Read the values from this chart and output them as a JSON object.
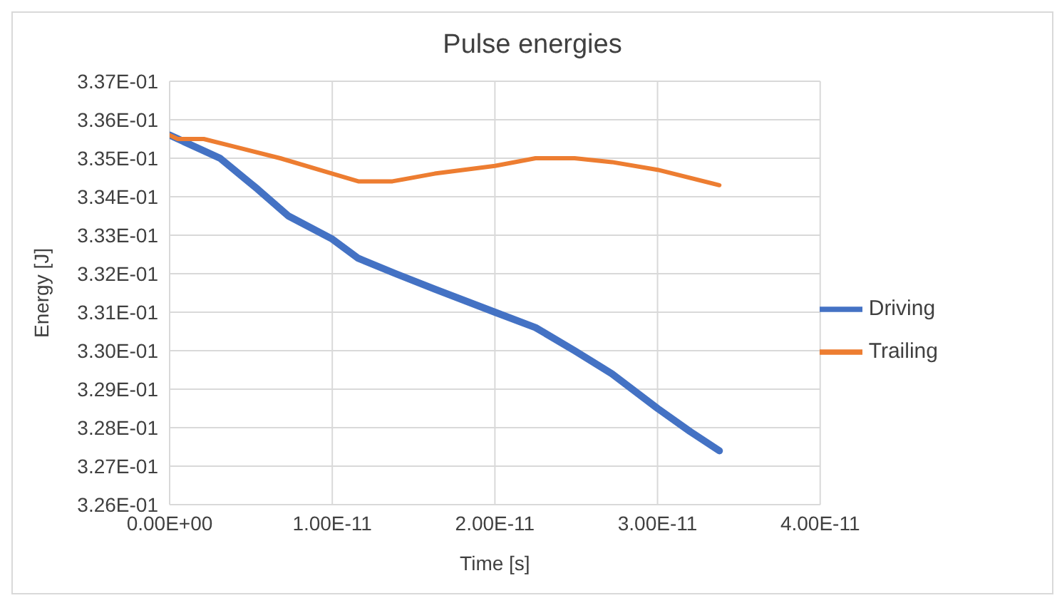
{
  "chart_data": {
    "type": "line",
    "title": "Pulse energies",
    "xlabel": "Time [s]",
    "ylabel": "Energy [J]",
    "xlim": [
      0,
      4e-11
    ],
    "xticks": [
      {
        "value": 0,
        "label": "0.00E+00"
      },
      {
        "value": 1e-11,
        "label": "1.00E-11"
      },
      {
        "value": 2e-11,
        "label": "2.00E-11"
      },
      {
        "value": 3e-11,
        "label": "3.00E-11"
      },
      {
        "value": 4e-11,
        "label": "4.00E-11"
      }
    ],
    "ylim": [
      0.326,
      0.337
    ],
    "yticks": [
      {
        "value": 0.326,
        "label": "3.26E-01"
      },
      {
        "value": 0.327,
        "label": "3.27E-01"
      },
      {
        "value": 0.328,
        "label": "3.28E-01"
      },
      {
        "value": 0.329,
        "label": "3.29E-01"
      },
      {
        "value": 0.33,
        "label": "3.30E-01"
      },
      {
        "value": 0.331,
        "label": "3.31E-01"
      },
      {
        "value": 0.332,
        "label": "3.32E-01"
      },
      {
        "value": 0.333,
        "label": "3.33E-01"
      },
      {
        "value": 0.334,
        "label": "3.34E-01"
      },
      {
        "value": 0.335,
        "label": "3.35E-01"
      },
      {
        "value": 0.336,
        "label": "3.36E-01"
      },
      {
        "value": 0.337,
        "label": "3.37E-01"
      }
    ],
    "grid": true,
    "legend": "right",
    "marker": "none",
    "line_style": "solid",
    "series": [
      {
        "name": "Driving",
        "color": "#4472c4",
        "x": [
          0,
          3.1e-12,
          5.4e-12,
          7.3e-12,
          1e-11,
          1.16e-11,
          1.39e-11,
          1.63e-11,
          2e-11,
          2.25e-11,
          2.49e-11,
          2.72e-11,
          3e-11,
          3.2e-11,
          3.38e-11
        ],
        "values": [
          0.3356,
          0.335,
          0.3342,
          0.3335,
          0.3329,
          0.3324,
          0.332,
          0.3316,
          0.331,
          0.3306,
          0.33,
          0.3294,
          0.3285,
          0.3279,
          0.3274
        ]
      },
      {
        "name": "Trailing",
        "color": "#ed7d31",
        "x": [
          0,
          5e-13,
          2.1e-12,
          4e-12,
          6.8e-12,
          1e-11,
          1.16e-11,
          1.37e-11,
          1.63e-11,
          2e-11,
          2.25e-11,
          2.49e-11,
          2.72e-11,
          3e-11,
          3.38e-11
        ],
        "values": [
          0.3356,
          0.3355,
          0.3355,
          0.3353,
          0.335,
          0.3346,
          0.3344,
          0.3344,
          0.3346,
          0.3348,
          0.335,
          0.335,
          0.3349,
          0.3347,
          0.3343
        ]
      }
    ]
  }
}
